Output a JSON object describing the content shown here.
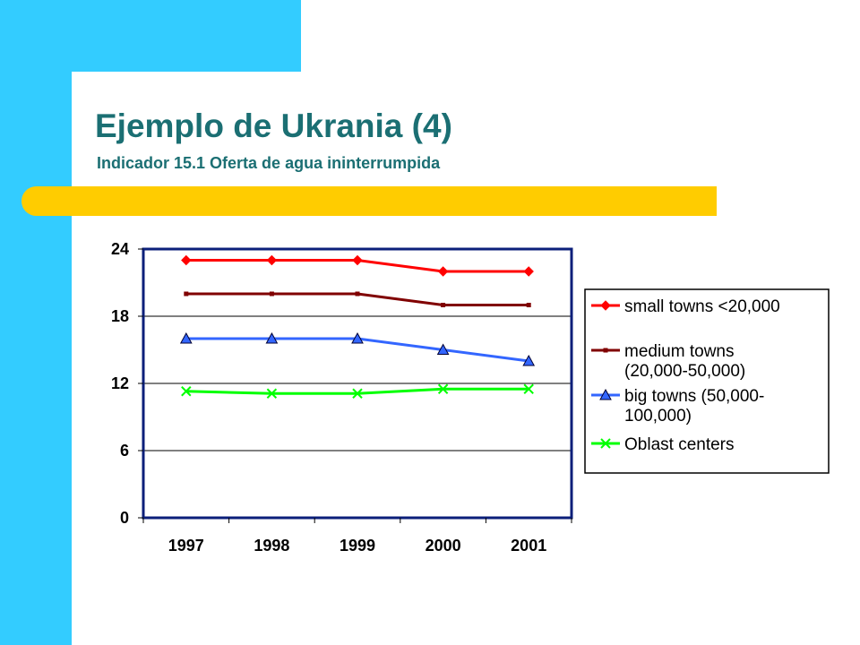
{
  "slide": {
    "title": "Ejemplo de Ukrania (4)",
    "subtitle": "Indicador 15.1 Oferta de agua ininterrumpida",
    "colors": {
      "accent_cyan": "#33ccff",
      "accent_yellow": "#ffcc00",
      "title_color": "#1b6f73",
      "plot_border": "#0b1f7a"
    }
  },
  "chart_data": {
    "type": "line",
    "categories": [
      "1997",
      "1998",
      "1999",
      "2000",
      "2001"
    ],
    "ylim": [
      0,
      24
    ],
    "yticks": [
      "0",
      "6",
      "12",
      "18",
      "24"
    ],
    "grid": true,
    "legend_position": "right",
    "series": [
      {
        "name": "small towns <20,000",
        "values": [
          23,
          23,
          23,
          22,
          22
        ],
        "color": "#ff0000",
        "marker": "diamond"
      },
      {
        "name": "medium towns (20,000-50,000)",
        "values": [
          20,
          20,
          20,
          19,
          19
        ],
        "color": "#800000",
        "marker": "square"
      },
      {
        "name": "big towns (50,000-100,000)",
        "values": [
          16,
          16,
          16,
          15,
          14
        ],
        "color": "#3366ff",
        "marker": "triangle"
      },
      {
        "name": "Oblast centers",
        "values": [
          11.3,
          11.1,
          11.1,
          11.5,
          11.5
        ],
        "color": "#00ff00",
        "marker": "x"
      }
    ],
    "legend_lines": [
      [
        "small towns <20,000"
      ],
      [
        "medium towns",
        "(20,000-50,000)"
      ],
      [
        "big towns (50,000-",
        "100,000)"
      ],
      [
        "Oblast centers"
      ]
    ]
  }
}
